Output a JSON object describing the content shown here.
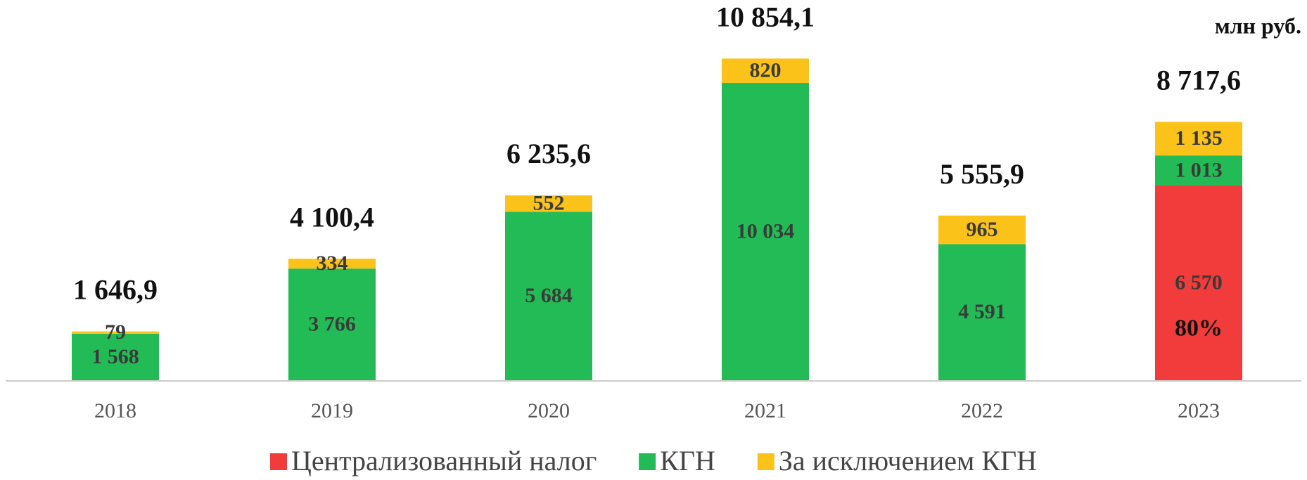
{
  "chart_data": {
    "type": "stacked_bar",
    "unit_label": "млн руб.",
    "categories": [
      "2018",
      "2019",
      "2020",
      "2021",
      "2022",
      "2023"
    ],
    "series": [
      {
        "name": "Централизованный налог",
        "color": "#f23b3b",
        "values": [
          null,
          null,
          null,
          null,
          null,
          6570
        ],
        "value_labels": [
          null,
          null,
          null,
          null,
          null,
          "6 570"
        ]
      },
      {
        "name": "КГН",
        "color": "#22bb55",
        "values": [
          1568,
          3766,
          5684,
          10034,
          4591,
          1013
        ],
        "value_labels": [
          "1 568",
          "3 766",
          "5 684",
          "10 034",
          "4 591",
          "1 013"
        ]
      },
      {
        "name": "За исключением КГН",
        "color": "#fbc21a",
        "values": [
          79,
          334,
          552,
          820,
          965,
          1135
        ],
        "value_labels": [
          "79",
          "334",
          "552",
          "820",
          "965",
          "1 135"
        ]
      }
    ],
    "totals": [
      1646.9,
      4100.4,
      6235.6,
      10854.1,
      5555.9,
      8717.6
    ],
    "total_labels": [
      "1 646,9",
      "4 100,4",
      "6 235,6",
      "10 854,1",
      "5 555,9",
      "8 717,6"
    ],
    "annotation": "80%",
    "ylim": [
      0,
      12000
    ]
  }
}
